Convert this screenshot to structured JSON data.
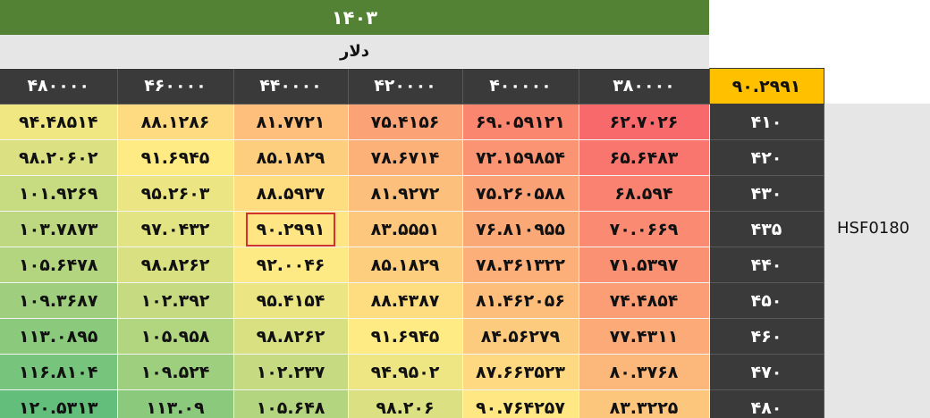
{
  "header": {
    "year": "۱۴۰۳",
    "currency": "دلار"
  },
  "corner_value": "۹۰.۲۹۹۱",
  "side_label": "HSF0180",
  "columns": [
    "۳۸۰۰۰۰",
    "۴۰۰۰۰۰",
    "۴۲۰۰۰۰",
    "۴۴۰۰۰۰",
    "۴۶۰۰۰۰",
    "۴۸۰۰۰۰"
  ],
  "rows": [
    {
      "label": "۴۱۰",
      "cells": [
        "۶۲.۷۰۲۶",
        "۶۹.۰۵۹۱۲۱",
        "۷۵.۴۱۵۶",
        "۸۱.۷۷۲۱",
        "۸۸.۱۲۸۶",
        "۹۴.۴۸۵۱۴"
      ]
    },
    {
      "label": "۴۲۰",
      "cells": [
        "۶۵.۶۴۸۳",
        "۷۲.۱۵۹۸۵۴",
        "۷۸.۶۷۱۴",
        "۸۵.۱۸۲۹",
        "۹۱.۶۹۴۵",
        "۹۸.۲۰۶۰۲"
      ]
    },
    {
      "label": "۴۳۰",
      "cells": [
        "۶۸.۵۹۴",
        "۷۵.۲۶۰۵۸۸",
        "۸۱.۹۲۷۲",
        "۸۸.۵۹۳۷",
        "۹۵.۲۶۰۳",
        "۱۰۱.۹۲۶۹"
      ]
    },
    {
      "label": "۴۳۵",
      "cells": [
        "۷۰.۰۶۶۹",
        "۷۶.۸۱۰۹۵۵",
        "۸۳.۵۵۵۱",
        "۹۰.۲۹۹۱",
        "۹۷.۰۴۳۲",
        "۱۰۳.۷۸۷۳"
      ]
    },
    {
      "label": "۴۴۰",
      "cells": [
        "۷۱.۵۳۹۷",
        "۷۸.۳۶۱۳۲۲",
        "۸۵.۱۸۲۹",
        "۹۲.۰۰۴۶",
        "۹۸.۸۲۶۲",
        "۱۰۵.۶۴۷۸"
      ]
    },
    {
      "label": "۴۵۰",
      "cells": [
        "۷۴.۴۸۵۴",
        "۸۱.۴۶۲۰۵۶",
        "۸۸.۴۳۸۷",
        "۹۵.۴۱۵۴",
        "۱۰۲.۳۹۲",
        "۱۰۹.۳۶۸۷"
      ]
    },
    {
      "label": "۴۶۰",
      "cells": [
        "۷۷.۴۳۱۱",
        "۸۴.۵۶۲۷۹",
        "۹۱.۶۹۴۵",
        "۹۸.۸۲۶۲",
        "۱۰۵.۹۵۸",
        "۱۱۳.۰۸۹۵"
      ]
    },
    {
      "label": "۴۷۰",
      "cells": [
        "۸۰.۳۷۶۸",
        "۸۷.۶۶۳۵۲۳",
        "۹۴.۹۵۰۲",
        "۱۰۲.۲۳۷",
        "۱۰۹.۵۲۴",
        "۱۱۶.۸۱۰۴"
      ]
    },
    {
      "label": "۴۸۰",
      "cells": [
        "۸۳.۳۲۲۵",
        "۹۰.۷۶۴۲۵۷",
        "۹۸.۲۰۶",
        "۱۰۵.۶۴۸",
        "۱۱۳.۰۹",
        "۱۲۰.۵۳۱۳"
      ]
    }
  ],
  "selected": {
    "row": 3,
    "col": 3
  },
  "heatmap_colors": {
    "low": "#f8696b",
    "mid": "#ffeb84",
    "high": "#63be7b"
  }
}
